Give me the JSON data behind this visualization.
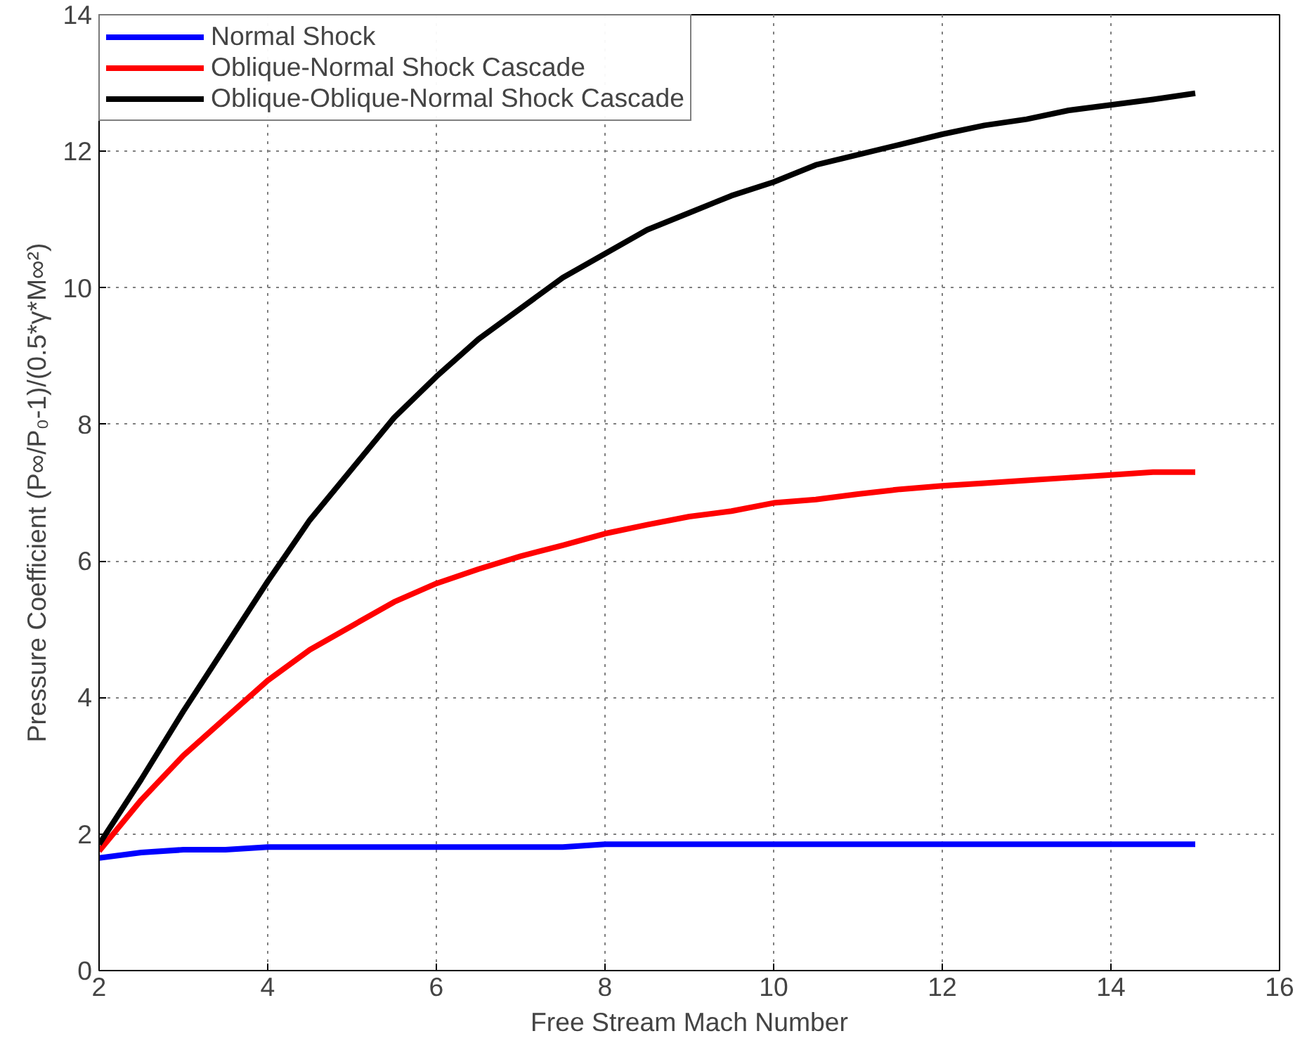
{
  "chart_data": {
    "type": "line",
    "xlabel": "Free Stream Mach Number",
    "ylabel": "Pressure Coefficient (P∞/P₀-1)/(0.5*γ*M∞²)",
    "x": [
      2,
      2.5,
      3,
      3.5,
      4,
      4.5,
      5,
      5.5,
      6,
      6.5,
      7,
      7.5,
      8,
      8.5,
      9,
      9.5,
      10,
      10.5,
      11,
      11.5,
      12,
      12.5,
      13,
      13.5,
      14,
      14.5,
      15
    ],
    "series": [
      {
        "name": "Normal Shock",
        "color": "#0000ff",
        "values": [
          1.65,
          1.73,
          1.77,
          1.77,
          1.81,
          1.81,
          1.81,
          1.81,
          1.81,
          1.81,
          1.81,
          1.81,
          1.85,
          1.85,
          1.85,
          1.85,
          1.85,
          1.85,
          1.85,
          1.85,
          1.85,
          1.85,
          1.85,
          1.85,
          1.85,
          1.85,
          1.85
        ]
      },
      {
        "name": "Oblique-Normal Shock Cascade",
        "color": "#ff0000",
        "values": [
          1.75,
          2.5,
          3.15,
          3.7,
          4.25,
          4.7,
          5.05,
          5.4,
          5.67,
          5.88,
          6.07,
          6.23,
          6.4,
          6.53,
          6.65,
          6.73,
          6.85,
          6.9,
          6.98,
          7.05,
          7.1,
          7.14,
          7.18,
          7.22,
          7.26,
          7.3,
          7.3
        ]
      },
      {
        "name": "Oblique-Oblique-Normal Shock Cascade",
        "color": "#000000",
        "values": [
          1.85,
          2.8,
          3.8,
          4.75,
          5.7,
          6.6,
          7.35,
          8.1,
          8.7,
          9.25,
          9.7,
          10.15,
          10.5,
          10.85,
          11.1,
          11.35,
          11.55,
          11.8,
          11.95,
          12.1,
          12.25,
          12.38,
          12.47,
          12.6,
          12.68,
          12.76,
          12.85
        ]
      }
    ],
    "xlim": [
      2,
      16
    ],
    "ylim": [
      0,
      14
    ],
    "xticks": [
      2,
      4,
      6,
      8,
      10,
      12,
      14,
      16
    ],
    "yticks": [
      0,
      2,
      4,
      6,
      8,
      10,
      12,
      14
    ],
    "grid": true,
    "legend": "top left",
    "line_style": "solid",
    "marker": "none"
  }
}
